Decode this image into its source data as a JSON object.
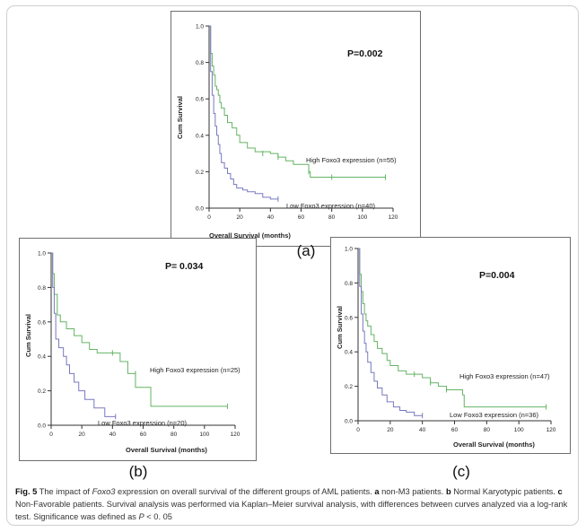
{
  "figure": {
    "caption": {
      "fig_label": "Fig. 5",
      "text_1": " The impact of ",
      "gene": "Foxo3",
      "text_2": " expression on overall survival of the different groups of AML patients. ",
      "a_letter": "a",
      "a_text": " non-M3 patients. ",
      "b_letter": "b",
      "b_text": " Normal Karyotypic patients. ",
      "c_letter": "c",
      "c_text": " Non-Favorable patients. Survival analysis was performed via Kaplan–Meier survival analysis, with differences between curves analyzed via a log-rank test. Significance was defined as ",
      "p_symbol": "P",
      "p_text": " < 0. 05"
    }
  },
  "colors": {
    "high": "#64b464",
    "low": "#7878c0",
    "axis": "#333333",
    "frame": "#cfcfcf"
  },
  "chart_data": [
    {
      "type": "line",
      "panel_label": "(a)",
      "pvalue": "P=0.002",
      "xlabel": "Overall Survival (months)",
      "ylabel": "Cum Survival",
      "xlim": [
        0,
        120
      ],
      "ylim": [
        0,
        1.0
      ],
      "x_ticks": [
        "0",
        "20",
        "40",
        "60",
        "80",
        "100",
        "120"
      ],
      "y_ticks": [
        "0.0",
        "0.2",
        "0.4",
        "0.6",
        "0.8",
        "1.0"
      ],
      "series": [
        {
          "name": "High Foxo3 expression (n=55)",
          "key": "high",
          "times": [
            0,
            1,
            2,
            3,
            4,
            5,
            6,
            7,
            8,
            10,
            12,
            15,
            18,
            20,
            25,
            30,
            40,
            45,
            50,
            55,
            65,
            66,
            115
          ],
          "survival": [
            1.0,
            0.85,
            0.78,
            0.73,
            0.67,
            0.65,
            0.62,
            0.58,
            0.55,
            0.51,
            0.47,
            0.44,
            0.4,
            0.36,
            0.33,
            0.31,
            0.3,
            0.28,
            0.26,
            0.24,
            0.2,
            0.17,
            0.17
          ],
          "censors": [
            [
              35,
              0.3
            ],
            [
              45,
              0.28
            ],
            [
              65,
              0.2
            ],
            [
              80,
              0.17
            ],
            [
              115,
              0.17
            ]
          ]
        },
        {
          "name": "Low Foxo3 expression (n=40)",
          "key": "low",
          "times": [
            0,
            1,
            2,
            3,
            4,
            5,
            6,
            7,
            8,
            10,
            12,
            14,
            16,
            18,
            22,
            25,
            30,
            35,
            40,
            45
          ],
          "survival": [
            1.0,
            0.75,
            0.62,
            0.52,
            0.45,
            0.4,
            0.35,
            0.3,
            0.25,
            0.22,
            0.19,
            0.16,
            0.13,
            0.11,
            0.1,
            0.09,
            0.08,
            0.06,
            0.05,
            0.05
          ],
          "censors": [
            [
              45,
              0.05
            ]
          ]
        }
      ]
    },
    {
      "type": "line",
      "panel_label": "(b)",
      "pvalue": "P= 0.034",
      "xlabel": "Overall Survival (months)",
      "ylabel": "Cum Survival",
      "xlim": [
        0,
        120
      ],
      "ylim": [
        0,
        1.0
      ],
      "x_ticks": [
        "0",
        "20",
        "40",
        "60",
        "80",
        "100",
        "120"
      ],
      "y_ticks": [
        "0.0",
        "0.2",
        "0.4",
        "0.6",
        "0.8",
        "1.0"
      ],
      "series": [
        {
          "name": "High Foxo3 expression (n=25)",
          "key": "high",
          "times": [
            0,
            1,
            2,
            4,
            6,
            10,
            15,
            20,
            25,
            30,
            40,
            45,
            50,
            55,
            65,
            115
          ],
          "survival": [
            1.0,
            0.88,
            0.76,
            0.64,
            0.6,
            0.56,
            0.52,
            0.48,
            0.44,
            0.42,
            0.42,
            0.37,
            0.3,
            0.22,
            0.11,
            0.11
          ],
          "censors": [
            [
              40,
              0.42
            ],
            [
              55,
              0.3
            ],
            [
              115,
              0.11
            ]
          ]
        },
        {
          "name": "Low Foxo3 expression (n=20)",
          "key": "low",
          "times": [
            0,
            1,
            2,
            3,
            5,
            8,
            10,
            12,
            15,
            18,
            22,
            28,
            35,
            42
          ],
          "survival": [
            1.0,
            0.8,
            0.65,
            0.5,
            0.45,
            0.4,
            0.35,
            0.3,
            0.25,
            0.2,
            0.15,
            0.1,
            0.05,
            0.05
          ],
          "censors": [
            [
              42,
              0.05
            ]
          ]
        }
      ]
    },
    {
      "type": "line",
      "panel_label": "(c)",
      "pvalue": "P=0.004",
      "xlabel": "Overall Survival (months)",
      "ylabel": "Cum Survival",
      "xlim": [
        0,
        120
      ],
      "ylim": [
        0,
        1.0
      ],
      "x_ticks": [
        "0",
        "20",
        "40",
        "60",
        "80",
        "100",
        "120"
      ],
      "y_ticks": [
        "0.0",
        "0.2",
        "0.4",
        "0.6",
        "0.8",
        "1.0"
      ],
      "series": [
        {
          "name": "High Foxo3 expression (n=47)",
          "key": "high",
          "times": [
            0,
            1,
            2,
            3,
            4,
            5,
            6,
            8,
            10,
            12,
            15,
            18,
            20,
            25,
            30,
            40,
            45,
            50,
            55,
            65,
            66,
            117
          ],
          "survival": [
            1.0,
            0.85,
            0.75,
            0.68,
            0.62,
            0.58,
            0.55,
            0.5,
            0.46,
            0.42,
            0.39,
            0.35,
            0.32,
            0.29,
            0.27,
            0.25,
            0.22,
            0.2,
            0.18,
            0.15,
            0.08,
            0.08
          ],
          "censors": [
            [
              35,
              0.27
            ],
            [
              45,
              0.22
            ],
            [
              55,
              0.18
            ],
            [
              117,
              0.08
            ]
          ]
        },
        {
          "name": "Low Foxo3 expression (n=36)",
          "key": "low",
          "times": [
            0,
            1,
            2,
            3,
            4,
            5,
            6,
            8,
            10,
            12,
            15,
            18,
            22,
            26,
            30,
            35,
            40
          ],
          "survival": [
            1.0,
            0.78,
            0.62,
            0.52,
            0.45,
            0.4,
            0.34,
            0.28,
            0.23,
            0.19,
            0.15,
            0.11,
            0.08,
            0.06,
            0.05,
            0.03,
            0.03
          ],
          "censors": [
            [
              40,
              0.03
            ]
          ]
        }
      ]
    }
  ]
}
